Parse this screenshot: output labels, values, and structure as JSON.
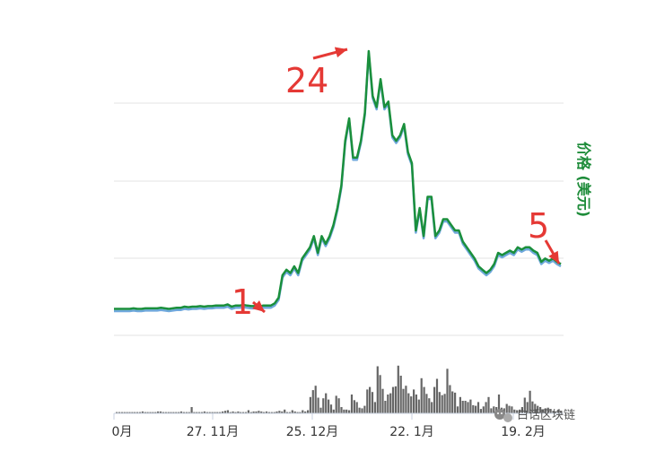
{
  "chart_data": {
    "type": "line",
    "series": [
      {
        "color": "#1a8f3c",
        "values": [
          1.0,
          1.0,
          1.0,
          1.0,
          1.0,
          1.05,
          1.0,
          1.0,
          1.05,
          1.05,
          1.05,
          1.05,
          1.1,
          1.05,
          1.0,
          1.05,
          1.1,
          1.1,
          1.2,
          1.15,
          1.2,
          1.2,
          1.25,
          1.2,
          1.25,
          1.25,
          1.3,
          1.3,
          1.3,
          1.4,
          1.2,
          1.3,
          1.3,
          1.35,
          1.3,
          1.25,
          1.25,
          1.2,
          1.3,
          1.3,
          1.3,
          1.5,
          2.0,
          4.0,
          4.5,
          4.2,
          4.8,
          4.2,
          5.5,
          6.0,
          6.5,
          7.5,
          6.0,
          7.5,
          6.8,
          7.5,
          8.5,
          10.0,
          12.0,
          16.0,
          18.0,
          14.5,
          14.5,
          16.0,
          18.5,
          24.0,
          20.0,
          19.0,
          21.5,
          19.0,
          19.5,
          16.5,
          16.0,
          16.5,
          17.5,
          15.0,
          14.0,
          8.0,
          10.0,
          7.5,
          11.0,
          11.0,
          7.5,
          8.0,
          9.0,
          9.0,
          8.5,
          8.0,
          8.0,
          7.0,
          6.5,
          6.0,
          5.5,
          4.8,
          4.5,
          4.2,
          4.5,
          5.0,
          6.0,
          5.8,
          6.0,
          6.2,
          6.0,
          6.5,
          6.3,
          6.5,
          6.5,
          6.2,
          6.0,
          5.2,
          5.5,
          5.3,
          5.5,
          5.2,
          5.0
        ]
      }
    ],
    "volume": {
      "color": "#666666",
      "values": [
        0.02,
        0.02,
        0.02,
        0.02,
        0.02,
        0.02,
        0.02,
        0.02,
        0.02,
        0.02,
        0.03,
        0.02,
        0.02,
        0.02,
        0.02,
        0.02,
        0.03,
        0.03,
        0.02,
        0.02,
        0.02,
        0.02,
        0.02,
        0.02,
        0.02,
        0.03,
        0.02,
        0.02,
        0.02,
        0.1,
        0.02,
        0.02,
        0.02,
        0.02,
        0.03,
        0.02,
        0.02,
        0.02,
        0.02,
        0.02,
        0.02,
        0.03,
        0.04,
        0.05,
        0.02,
        0.03,
        0.02,
        0.03,
        0.02,
        0.02,
        0.02,
        0.05,
        0.02,
        0.03,
        0.03,
        0.04,
        0.03,
        0.02,
        0.03,
        0.02,
        0.02,
        0.02,
        0.03,
        0.04,
        0.03,
        0.06,
        0.02,
        0.02,
        0.05,
        0.03,
        0.02,
        0.02,
        0.05,
        0.03,
        0.05,
        0.26,
        0.37,
        0.44,
        0.25,
        0.09,
        0.24,
        0.32,
        0.22,
        0.14,
        0.06,
        0.28,
        0.24,
        0.1,
        0.06,
        0.06,
        0.05,
        0.3,
        0.21,
        0.18,
        0.09,
        0.08,
        0.12,
        0.38,
        0.42,
        0.34,
        0.18,
        0.75,
        0.61,
        0.39,
        0.2,
        0.3,
        0.32,
        0.42,
        0.43,
        0.76,
        0.6,
        0.39,
        0.44,
        0.32,
        0.27,
        0.38,
        0.3,
        0.22,
        0.56,
        0.42,
        0.31,
        0.24,
        0.18,
        0.42,
        0.55,
        0.34,
        0.29,
        0.31,
        0.71,
        0.45,
        0.35,
        0.33,
        0.11,
        0.26,
        0.2,
        0.2,
        0.18,
        0.22,
        0.13,
        0.12,
        0.18,
        0.07,
        0.11,
        0.18,
        0.26,
        0.08,
        0.11,
        0.1,
        0.3,
        0.09,
        0.08,
        0.15,
        0.12,
        0.11,
        0.06,
        0.05,
        0.06,
        0.1,
        0.25,
        0.18,
        0.36,
        0.19,
        0.15,
        0.12,
        0.1,
        0.06,
        0.08,
        0.09,
        0.07,
        0.04,
        0.03,
        0.06,
        0.03
      ]
    },
    "x_ticks": [
      "0月",
      "27. 11月",
      "25. 12月",
      "22. 1月",
      "19. 2月"
    ],
    "ylabel": "价格 (美元)",
    "grid": true,
    "annotations": [
      {
        "label": "24",
        "target_index": 65
      },
      {
        "label": "1",
        "target_index": 38
      },
      {
        "label": "5",
        "target_index": 113
      }
    ]
  },
  "watermark": {
    "icon": "wechat-icon",
    "text": "白话区块链"
  }
}
